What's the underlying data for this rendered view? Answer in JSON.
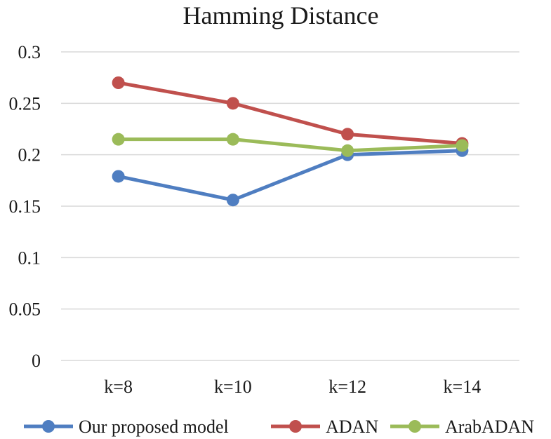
{
  "chart_data": {
    "type": "line",
    "title": "Hamming Distance",
    "categories": [
      "k=8",
      "k=10",
      "k=12",
      "k=14"
    ],
    "y_ticks": [
      "0",
      "0.05",
      "0.1",
      "0.15",
      "0.2",
      "0.25",
      "0.3"
    ],
    "ylim": [
      0,
      0.3
    ],
    "grid": true,
    "legend_position": "bottom",
    "series": [
      {
        "name": "Our proposed model",
        "color": "#4f7ec1",
        "values": [
          0.179,
          0.156,
          0.2,
          0.204
        ]
      },
      {
        "name": "ADAN",
        "color": "#c0504d",
        "values": [
          0.27,
          0.25,
          0.22,
          0.211
        ]
      },
      {
        "name": "ArabADAN",
        "color": "#9bbb59",
        "values": [
          0.215,
          0.215,
          0.204,
          0.209
        ]
      }
    ]
  }
}
